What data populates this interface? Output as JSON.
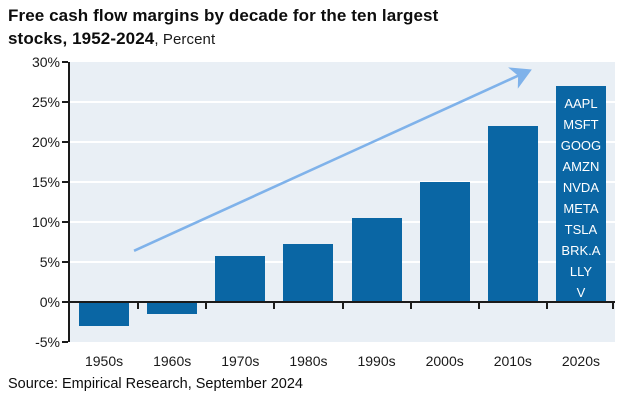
{
  "title": {
    "line1_bold": "Free cash flow margins by decade for the ten largest",
    "line2_bold": "stocks, 1952-2024",
    "line2_regular": ", Percent"
  },
  "source": "Source: Empirical Research, September 2024",
  "colors": {
    "bar": "#0a66a4",
    "plot_background": "#e9eff5",
    "gridline": "#ffffff",
    "axis": "#1a1a1a",
    "arrow": "#7fb2ea",
    "ticker_text": "#ffffff"
  },
  "chart_data": {
    "type": "bar",
    "title": "Free cash flow margins by decade for the ten largest stocks, 1952-2024",
    "units": "Percent",
    "xlabel": "",
    "ylabel": "Percent",
    "categories": [
      "1950s",
      "1960s",
      "1970s",
      "1980s",
      "1990s",
      "2000s",
      "2010s",
      "2020s"
    ],
    "values": [
      -3.0,
      -1.5,
      5.7,
      7.3,
      10.5,
      15.0,
      22.0,
      27.0
    ],
    "ylim": [
      -5,
      30
    ],
    "y_ticks": [
      {
        "label": "30%",
        "value": 30
      },
      {
        "label": "25%",
        "value": 25
      },
      {
        "label": "20%",
        "value": 20
      },
      {
        "label": "15%",
        "value": 15
      },
      {
        "label": "10%",
        "value": 10
      },
      {
        "label": "5%",
        "value": 5
      },
      {
        "label": "0%",
        "value": 0
      },
      {
        "label": "-5%",
        "value": -5
      }
    ],
    "gridline_values": [
      25,
      20,
      15,
      10,
      5
    ],
    "grid": "horizontal-white",
    "legend": "none",
    "bar_label_2020s_tickers": [
      "AAPL",
      "MSFT",
      "GOOG",
      "AMZN",
      "NVDA",
      "META",
      "TSLA",
      "BRK.A",
      "LLY",
      "V"
    ],
    "trend_arrow": {
      "x1_slot": 0.94,
      "y1_value": 6.4,
      "x2_slot": 6.71,
      "y2_value": 28.8
    }
  }
}
